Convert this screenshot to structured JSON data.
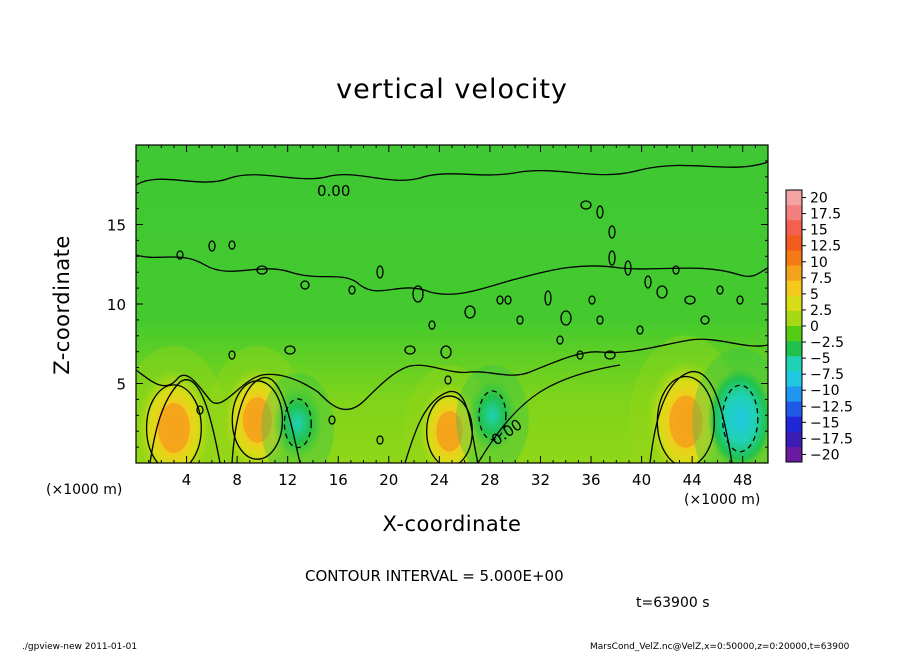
{
  "chart_data": {
    "type": "heatmap",
    "title": "vertical velocity",
    "xlabel": "X-coordinate",
    "ylabel": "Z-coordinate",
    "x_unit_label": "(×1000 m)",
    "x_range": [
      0,
      50
    ],
    "y_range": [
      0,
      20
    ],
    "x_ticks": [
      4,
      8,
      12,
      16,
      20,
      24,
      28,
      32,
      36,
      40,
      44,
      48
    ],
    "y_ticks": [
      5,
      10,
      15
    ],
    "contour_label": "0.00",
    "colorbar": {
      "levels": [
        20,
        17.5,
        15,
        12.5,
        10,
        7.5,
        5,
        2.5,
        0,
        -2.5,
        -5,
        -7.5,
        -10,
        -12.5,
        -15,
        -17.5,
        -20
      ],
      "colors": [
        "#f4a3a3",
        "#f47f7f",
        "#f45f50",
        "#f25a1e",
        "#f37a14",
        "#f4a21b",
        "#f7c81c",
        "#d8dc17",
        "#a4d914",
        "#54cc14",
        "#21c24c",
        "#1fd2b6",
        "#22c7e2",
        "#2196ee",
        "#1f59e8",
        "#1e28d6",
        "#3a1db5",
        "#6a1aa0"
      ],
      "labels": [
        "20",
        "17.5",
        "15",
        "12.5",
        "10",
        "7.5",
        "5",
        "2.5",
        "0",
        "−2.5",
        "−5",
        "−7.5",
        "−10",
        "−12.5",
        "−15",
        "−17.5",
        "−20"
      ]
    },
    "features": [
      {
        "x": 3.0,
        "z": 2.2,
        "w": 7.0,
        "kind": "updraft"
      },
      {
        "x": 9.6,
        "z": 2.7,
        "w": 6.0,
        "kind": "updraft"
      },
      {
        "x": 24.8,
        "z": 2.0,
        "w": 5.0,
        "kind": "updraft"
      },
      {
        "x": 43.5,
        "z": 2.6,
        "w": 7.5,
        "kind": "updraft"
      },
      {
        "x": 12.8,
        "z": 2.5,
        "w": -3.0,
        "kind": "downdraft"
      },
      {
        "x": 28.2,
        "z": 3.0,
        "w": -3.0,
        "kind": "downdraft"
      },
      {
        "x": 47.8,
        "z": 2.8,
        "w": -5.5,
        "kind": "downdraft"
      }
    ]
  },
  "annotations": {
    "contour_interval": "CONTOUR INTERVAL = 5.000E+00",
    "time": "t=63900 s",
    "footer_left": "./gpview-new   2011-01-01",
    "footer_right": "MarsCond_VelZ.nc@VelZ,x=0:50000,z=0:20000,t=63900"
  }
}
